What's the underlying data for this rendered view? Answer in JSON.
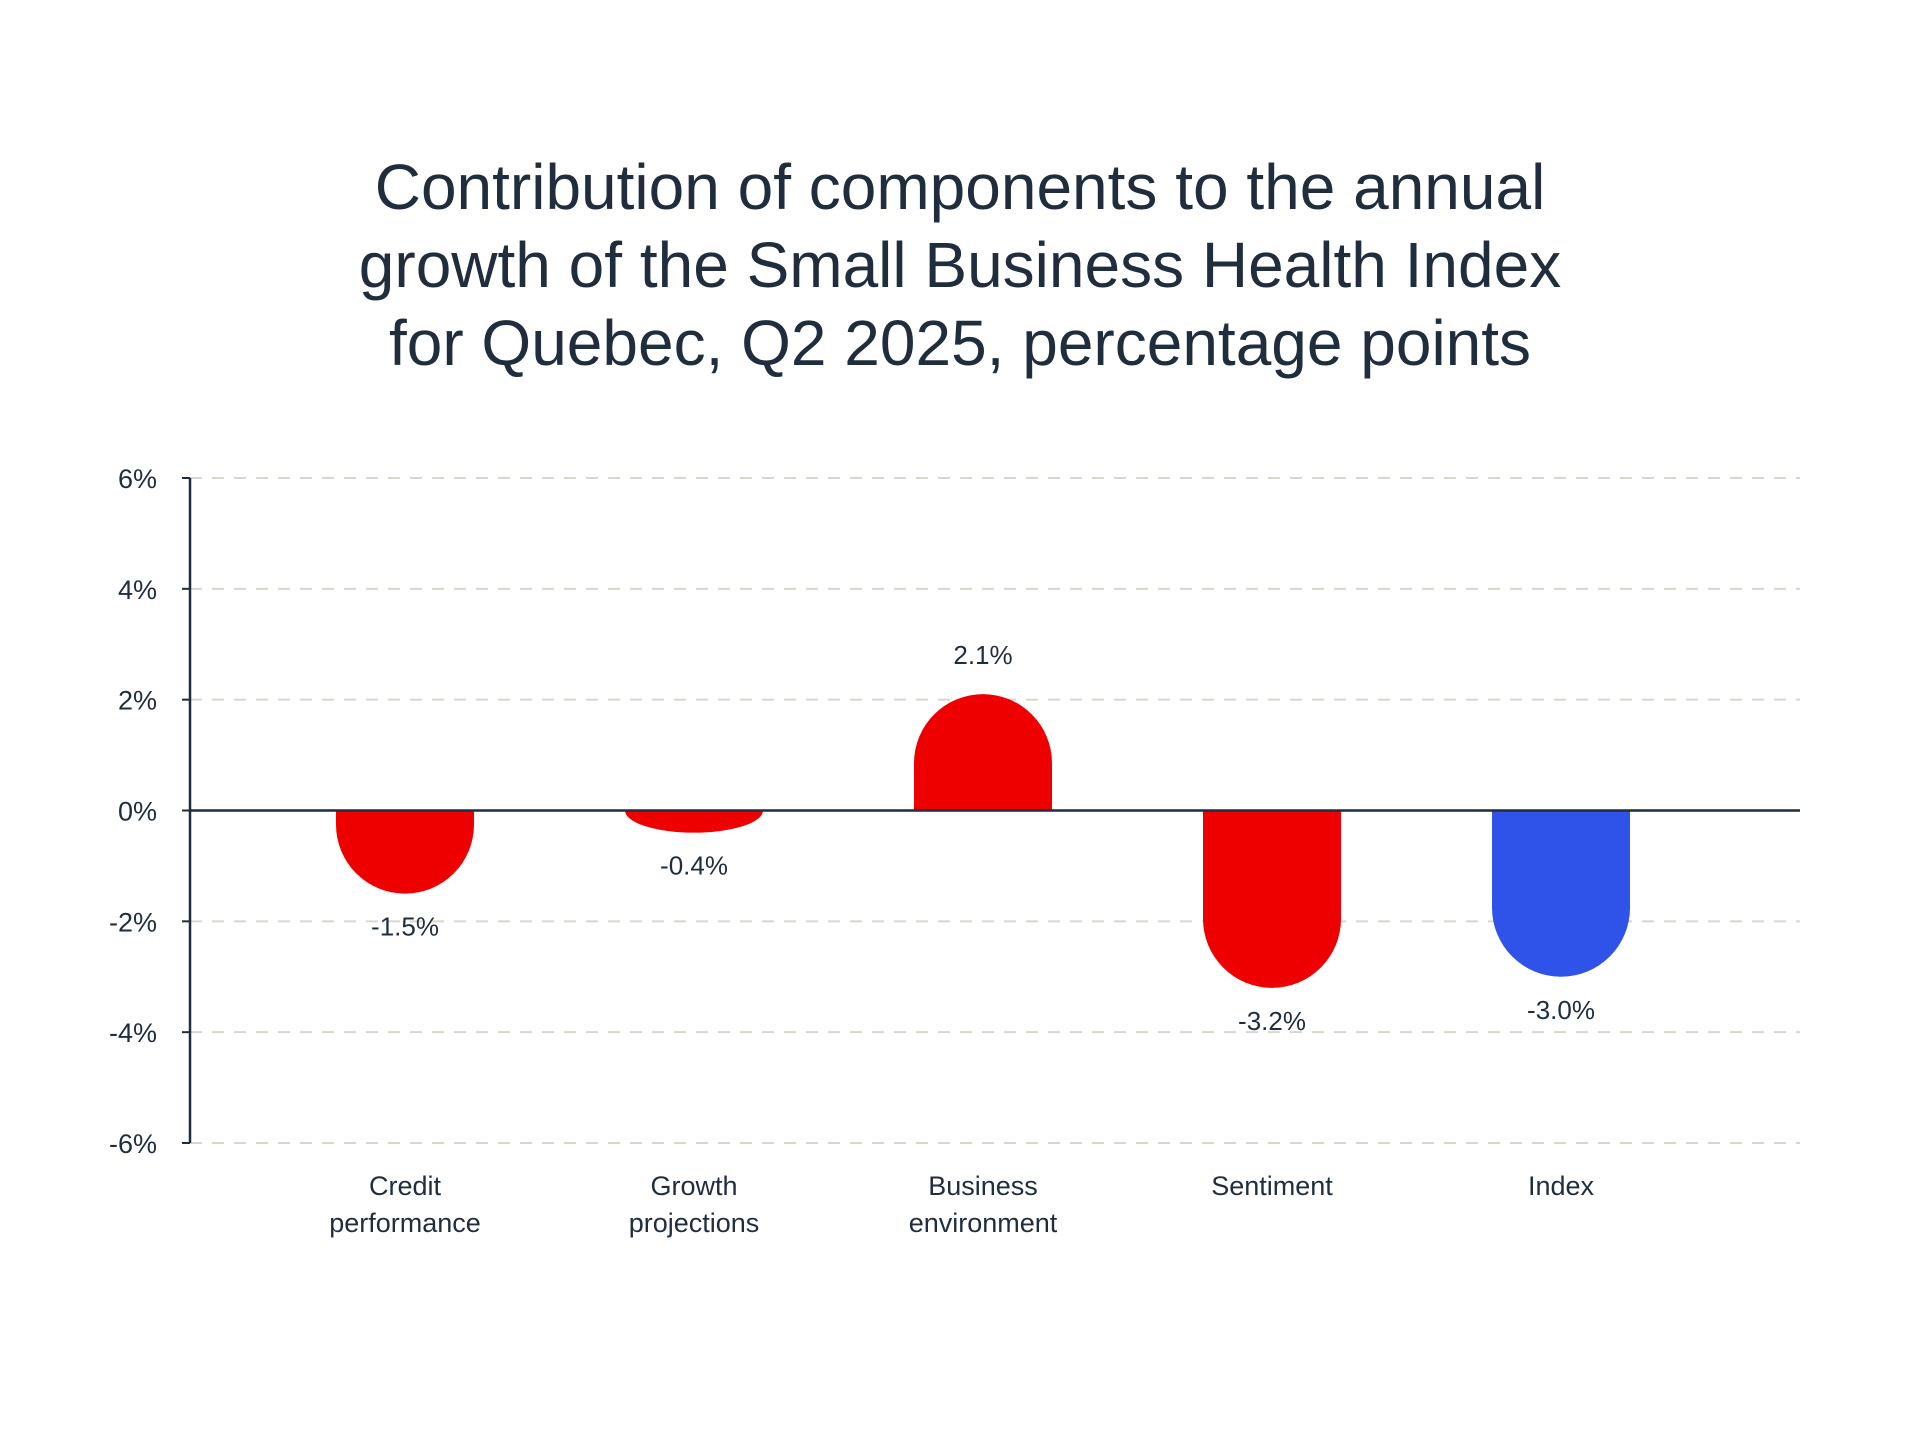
{
  "chart_data": {
    "type": "bar",
    "title_lines": [
      "Contribution of components to the annual",
      "growth of the Small Business Health Index",
      "for Quebec, Q2 2025, percentage points"
    ],
    "categories": [
      [
        "Credit",
        "performance"
      ],
      [
        "Growth",
        "projections"
      ],
      [
        "Business",
        "environment"
      ],
      [
        "Sentiment"
      ],
      [
        "Index"
      ]
    ],
    "values": [
      -1.5,
      -0.4,
      2.1,
      -3.2,
      -3.0
    ],
    "data_labels": [
      "-1.5%",
      "-0.4%",
      "2.1%",
      "-3.2%",
      "-3.0%"
    ],
    "bar_colors": [
      "#ee0000",
      "#ee0000",
      "#ee0000",
      "#ee0000",
      "#2f52e8"
    ],
    "ylim": [
      -6,
      6
    ],
    "yticks": [
      6,
      4,
      2,
      0,
      -2,
      -4,
      -6
    ],
    "ytick_labels": [
      "6%",
      "4%",
      "2%",
      "0%",
      "-2%",
      "-4%",
      "-6%"
    ],
    "grid": "horizontal dashed",
    "grid_color": "#d9d6cc",
    "axis_color": "#1f2d3d"
  }
}
